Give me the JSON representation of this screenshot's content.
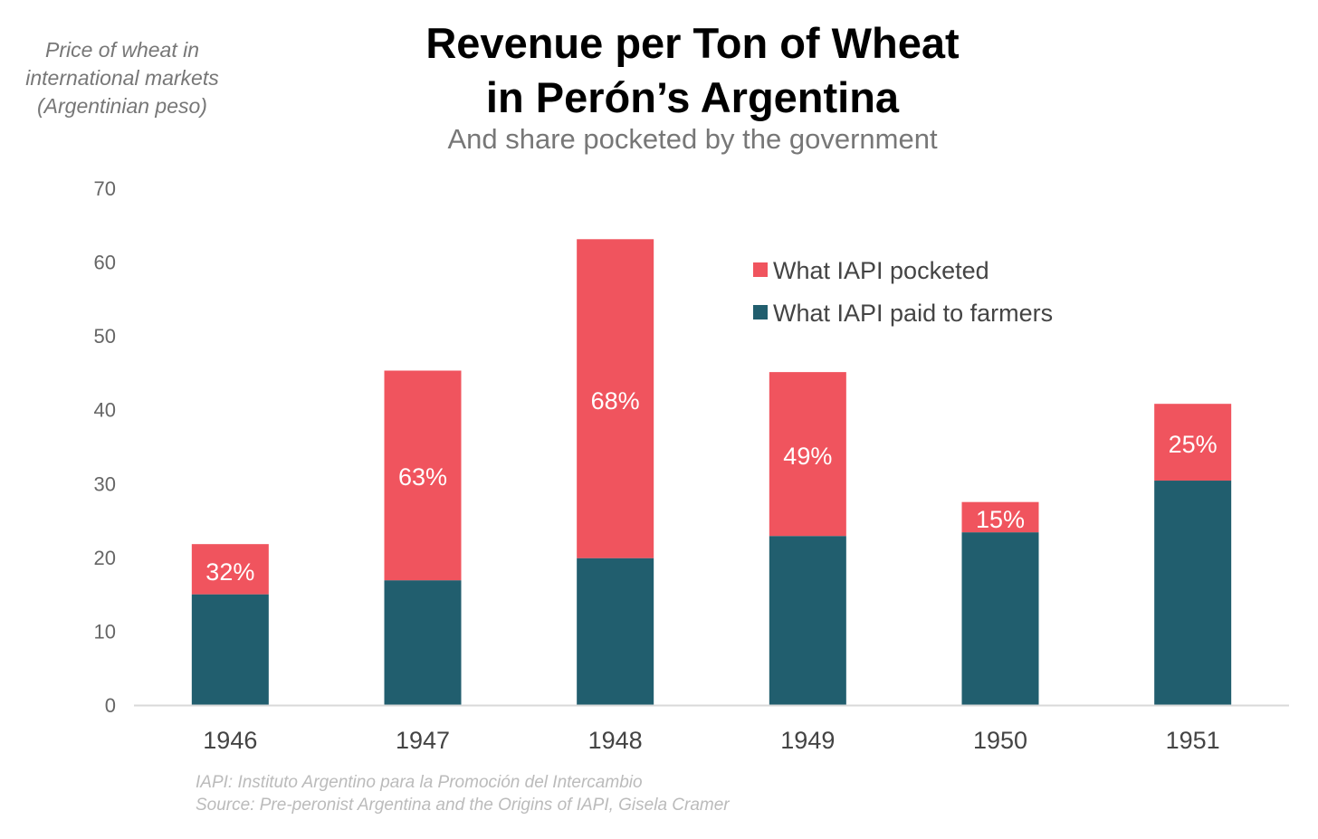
{
  "chart_data": {
    "type": "bar",
    "stacked": true,
    "title": "Revenue per Ton of Wheat in Perón’s Argentina",
    "title_lines": [
      "Revenue per Ton of Wheat",
      "in Perón’s Argentina"
    ],
    "subtitle": "And share pocketed by the government",
    "ylabel_lines": [
      "Price of wheat in",
      "international markets",
      "(Argentinian peso)"
    ],
    "xlabel": "",
    "ylim": [
      0,
      70
    ],
    "yticks": [
      0,
      10,
      20,
      30,
      40,
      50,
      60,
      70
    ],
    "categories": [
      "1946",
      "1947",
      "1948",
      "1949",
      "1950",
      "1951"
    ],
    "series": [
      {
        "name": "What IAPI paid to farmers",
        "color": "#215E6E",
        "values": [
          15.0,
          16.9,
          19.9,
          22.9,
          23.4,
          30.4
        ]
      },
      {
        "name": "What IAPI pocketed",
        "color": "#F0545E",
        "values": [
          6.8,
          28.4,
          43.2,
          22.2,
          4.1,
          10.4
        ]
      }
    ],
    "data_labels": [
      "32%",
      "63%",
      "68%",
      "49%",
      "15%",
      "25%"
    ],
    "legend": {
      "position": "top-right",
      "entries": [
        "What IAPI pocketed",
        "What IAPI paid to farmers"
      ]
    },
    "grid": false,
    "notes": [
      "IAPI: Instituto Argentino para la Promoción del Intercambio",
      "Source: Pre-peronist Argentina and the Origins of IAPI, Gisela Cramer"
    ]
  }
}
